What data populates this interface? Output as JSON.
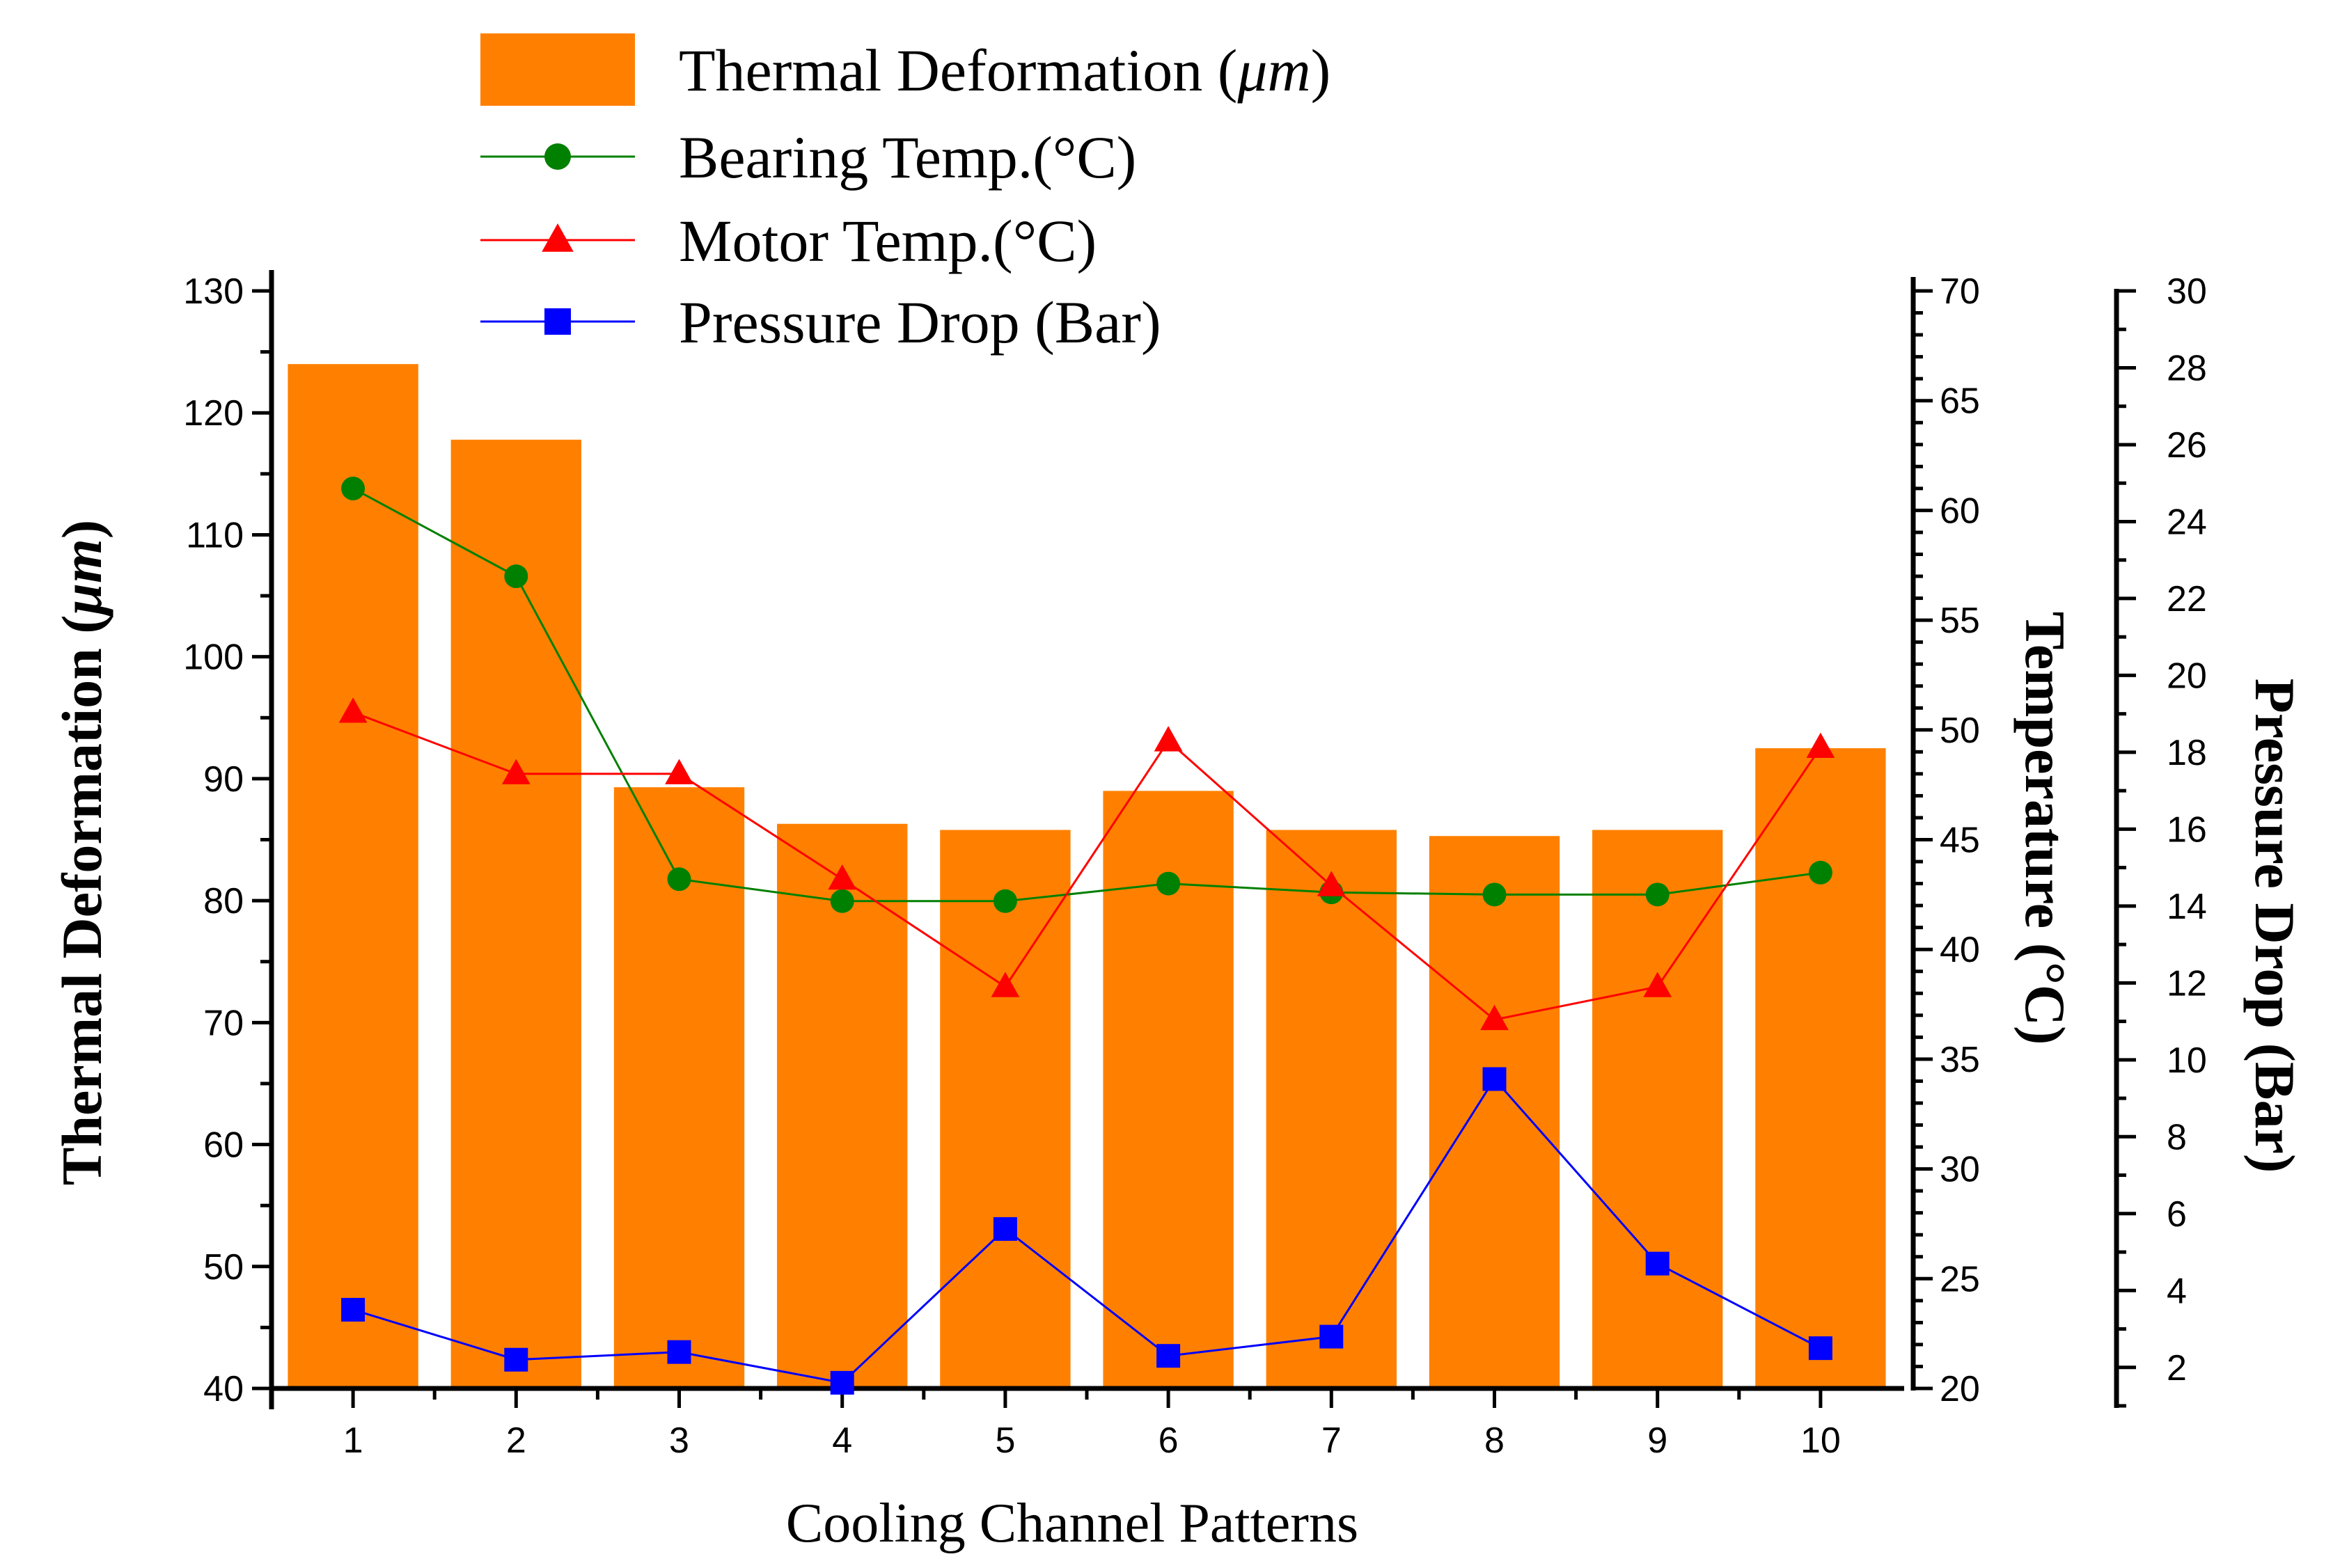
{
  "chart_data": {
    "type": "bar",
    "title": "",
    "xlabel": "Cooling Channel Patterns",
    "categories": [
      "1",
      "2",
      "3",
      "4",
      "5",
      "6",
      "7",
      "8",
      "9",
      "10"
    ],
    "axes": {
      "left": {
        "label_main": "Thermal Deformation (",
        "label_unit": "μm",
        "label_close": ")",
        "ylim": [
          40,
          130
        ],
        "ticks": [
          40,
          50,
          60,
          70,
          80,
          90,
          100,
          110,
          120,
          130
        ]
      },
      "right_temperature": {
        "label": "Temperature (°C)",
        "ylim": [
          20,
          70
        ],
        "ticks": [
          20,
          25,
          30,
          35,
          40,
          45,
          50,
          55,
          60,
          65,
          70
        ]
      },
      "right_pressure": {
        "label": "Pressure Drop (Bar)",
        "ylim": [
          1,
          30
        ],
        "ticks": [
          2,
          4,
          6,
          8,
          10,
          12,
          14,
          16,
          18,
          20,
          22,
          24,
          26,
          28,
          30
        ]
      }
    },
    "series": [
      {
        "name": "Thermal Deformation",
        "legend_main": "Thermal Deformation (",
        "legend_unit": "μm",
        "legend_close": ")",
        "kind": "bar",
        "axis": "left",
        "color": "#FF8000",
        "values": [
          124,
          117.8,
          89.3,
          86.3,
          85.8,
          89,
          85.8,
          85.3,
          85.8,
          92.5
        ]
      },
      {
        "name": "Bearing Temp.(°C)",
        "legend_main": "Bearing Temp.(",
        "legend_unit": "°C)",
        "kind": "line",
        "marker": "circle",
        "axis": "right_temperature",
        "color": "#008000",
        "values": [
          61,
          57,
          43.2,
          42.2,
          42.2,
          43,
          42.6,
          42.5,
          42.5,
          43.5
        ]
      },
      {
        "name": "Motor Temp.(°C)",
        "legend_main": "Motor Temp.(",
        "legend_unit": "°C)",
        "kind": "line",
        "marker": "triangle",
        "axis": "right_temperature",
        "color": "#FF0000",
        "values": [
          50.8,
          48,
          48,
          43.2,
          38.3,
          49.5,
          42.9,
          36.8,
          38.3,
          49.2
        ]
      },
      {
        "name": "Pressure Drop (Bar)",
        "legend_main": "Pressure Drop (Bar)",
        "legend_unit": "",
        "kind": "line",
        "marker": "square",
        "axis": "right_pressure",
        "color": "#0000FF",
        "values": [
          3.5,
          2.2,
          2.4,
          1.6,
          5.6,
          2.3,
          2.8,
          9.5,
          4.7,
          2.5
        ]
      }
    ],
    "legend_position": "top-center",
    "grid": false
  }
}
